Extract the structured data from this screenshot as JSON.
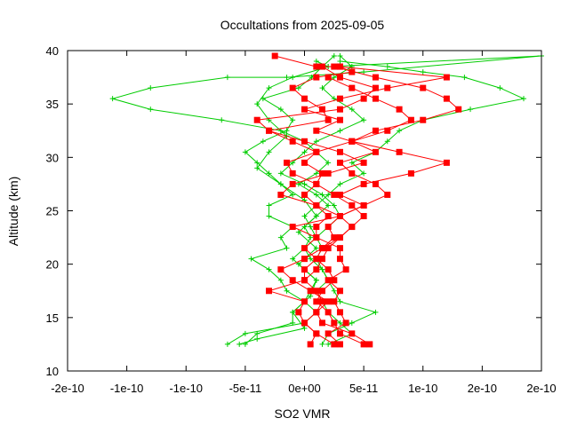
{
  "chart_data": {
    "type": "line",
    "title": "Occultations from 2025-09-05",
    "xlabel": "SO2 VMR",
    "ylabel": "Altitude (km)",
    "xlim": [
      -2e-10,
      2e-10
    ],
    "ylim": [
      10,
      40
    ],
    "x_ticks": [
      {
        "value": -2e-10,
        "label": "-2e-10"
      },
      {
        "value": -1.5e-10,
        "label": "-1e-10"
      },
      {
        "value": -1e-10,
        "label": "-1e-10"
      },
      {
        "value": -5e-11,
        "label": "-5e-11"
      },
      {
        "value": 0,
        "label": "0e+00"
      },
      {
        "value": 5e-11,
        "label": "5e-11"
      },
      {
        "value": 1e-10,
        "label": "1e-10"
      },
      {
        "value": 1.5e-10,
        "label": "2e-10"
      },
      {
        "value": 2e-10,
        "label": "2e-10"
      }
    ],
    "y_ticks": [
      10,
      15,
      20,
      25,
      30,
      35,
      40
    ],
    "grid": false,
    "series": [
      {
        "color": "#ff0000",
        "marker": "square",
        "points": [
          [
            -2.5e-11,
            39.5
          ],
          [
            1e-11,
            38.5
          ],
          [
            3e-11,
            38.5
          ],
          [
            4e-11,
            38
          ],
          [
            1e-11,
            37.5
          ],
          [
            -1e-11,
            36.5
          ],
          [
            0,
            35.5
          ],
          [
            1.5e-11,
            34.5
          ],
          [
            2e-11,
            33.5
          ],
          [
            -3e-11,
            32.5
          ],
          [
            -1e-11,
            31.5
          ],
          [
            1e-11,
            30.5
          ],
          [
            0,
            29.5
          ],
          [
            1.5e-11,
            28.5
          ],
          [
            1e-11,
            27.5
          ],
          [
            0,
            26.5
          ],
          [
            1e-11,
            25.5
          ],
          [
            2e-11,
            24.5
          ],
          [
            1e-11,
            23.5
          ],
          [
            1e-11,
            22.5
          ],
          [
            0,
            21.5
          ],
          [
            1e-11,
            20.5
          ],
          [
            0,
            19.5
          ],
          [
            0,
            18.5
          ],
          [
            1e-11,
            17.5
          ],
          [
            1.5e-11,
            16.5
          ],
          [
            1e-11,
            15.5
          ],
          [
            0,
            14.5
          ],
          [
            1e-11,
            13.5
          ],
          [
            5e-12,
            12.5
          ]
        ]
      },
      {
        "color": "#ff0000",
        "marker": "square",
        "points": [
          [
            2.5e-11,
            38.5
          ],
          [
            6e-11,
            37.5
          ],
          [
            1e-10,
            36.5
          ],
          [
            1.2e-10,
            35.5
          ],
          [
            1.3e-10,
            34.5
          ],
          [
            1e-10,
            33.5
          ],
          [
            6e-11,
            32.5
          ],
          [
            4e-11,
            31.5
          ],
          [
            8e-11,
            30.5
          ],
          [
            1.2e-10,
            29.5
          ],
          [
            9e-11,
            28.5
          ],
          [
            5e-11,
            27.5
          ],
          [
            3e-11,
            26.5
          ],
          [
            5e-11,
            25.5
          ],
          [
            3e-11,
            24.5
          ],
          [
            2e-11,
            23.5
          ],
          [
            2.5e-11,
            22.5
          ],
          [
            1.5e-11,
            21.5
          ],
          [
            1e-11,
            20.5
          ],
          [
            2e-11,
            19.5
          ],
          [
            2.5e-11,
            18.5
          ],
          [
            1.5e-11,
            17.5
          ],
          [
            1e-11,
            16.5
          ],
          [
            2e-11,
            15.5
          ],
          [
            2.5e-11,
            14.5
          ],
          [
            3e-11,
            13.5
          ],
          [
            5e-11,
            12.5
          ]
        ]
      },
      {
        "color": "#ff0000",
        "marker": "square",
        "points": [
          [
            2e-11,
            37.5
          ],
          [
            4e-11,
            36.5
          ],
          [
            6e-11,
            35.5
          ],
          [
            8e-11,
            34.5
          ],
          [
            9e-11,
            33.5
          ],
          [
            7e-11,
            32.5
          ],
          [
            4e-11,
            31.5
          ],
          [
            1e-11,
            30.5
          ],
          [
            -1.5e-11,
            29.5
          ],
          [
            -1e-11,
            28.5
          ],
          [
            1e-11,
            27.5
          ],
          [
            2.5e-11,
            26.5
          ],
          [
            4e-11,
            25.5
          ],
          [
            5e-11,
            24.5
          ],
          [
            4e-11,
            23.5
          ],
          [
            3e-11,
            22.5
          ],
          [
            2e-11,
            21.5
          ],
          [
            1.5e-11,
            20.5
          ],
          [
            1e-11,
            19.5
          ],
          [
            0,
            18.5
          ],
          [
            -3e-11,
            17.5
          ],
          [
            0,
            16.5
          ],
          [
            -5e-12,
            15.5
          ],
          [
            0,
            14.5
          ],
          [
            1e-11,
            13.5
          ],
          [
            2.5e-11,
            12.5
          ]
        ]
      },
      {
        "color": "#ff0000",
        "marker": "square",
        "points": [
          [
            3e-11,
            38.5
          ],
          [
            1.2e-10,
            37.5
          ],
          [
            7e-11,
            36.5
          ],
          [
            3e-11,
            35.5
          ],
          [
            0,
            34.5
          ],
          [
            3e-11,
            33.5
          ],
          [
            1e-11,
            32.5
          ],
          [
            4e-11,
            31.5
          ],
          [
            6e-11,
            30.5
          ],
          [
            3e-11,
            29.5
          ],
          [
            4e-11,
            28.5
          ],
          [
            6e-11,
            27.5
          ],
          [
            7e-11,
            26.5
          ],
          [
            5e-11,
            25.5
          ],
          [
            3e-11,
            24.5
          ],
          [
            4e-11,
            23.5
          ],
          [
            3e-11,
            22.5
          ],
          [
            1.5e-11,
            21.5
          ],
          [
            0,
            20.5
          ],
          [
            -2e-11,
            19.5
          ],
          [
            -1e-11,
            18.5
          ],
          [
            5e-12,
            17.5
          ],
          [
            2e-11,
            16.5
          ],
          [
            1e-11,
            15.5
          ],
          [
            1.5e-11,
            14.5
          ],
          [
            4e-11,
            13.5
          ],
          [
            5.5e-11,
            12.5
          ]
        ]
      },
      {
        "color": "#ff0000",
        "marker": "square",
        "points": [
          [
            1.5e-11,
            38.5
          ],
          [
            3e-11,
            37.5
          ],
          [
            6e-11,
            36.5
          ],
          [
            5e-11,
            35.5
          ],
          [
            3e-11,
            34.5
          ],
          [
            -4e-11,
            33.5
          ],
          [
            -3e-11,
            32.5
          ],
          [
            0,
            31.5
          ],
          [
            3e-11,
            30.5
          ],
          [
            5e-11,
            29.5
          ],
          [
            2e-11,
            28.5
          ],
          [
            -1e-11,
            27.5
          ],
          [
            -2e-11,
            26.5
          ],
          [
            1e-11,
            25.5
          ],
          [
            3e-11,
            24.5
          ],
          [
            -1e-11,
            23.5
          ],
          [
            1e-11,
            22.5
          ],
          [
            3e-11,
            21.5
          ],
          [
            3e-11,
            20.5
          ],
          [
            3.5e-11,
            19.5
          ],
          [
            2e-11,
            18.5
          ],
          [
            3e-11,
            17.5
          ],
          [
            2.5e-11,
            16.5
          ],
          [
            3e-11,
            15.5
          ],
          [
            3.5e-11,
            14.5
          ],
          [
            2e-11,
            13.5
          ],
          [
            3e-11,
            12.5
          ]
        ]
      },
      {
        "color": "#00cc00",
        "marker": "plus",
        "points": [
          [
            2.5e-11,
            39.5
          ],
          [
            1.5e-11,
            38.5
          ],
          [
            6e-12,
            37.5
          ],
          [
            -5e-12,
            36.5
          ],
          [
            -3.5e-11,
            35.5
          ],
          [
            -2e-11,
            34.5
          ],
          [
            -1e-11,
            33.5
          ],
          [
            -1.5e-11,
            32.5
          ],
          [
            -3.5e-11,
            31.5
          ],
          [
            -5e-11,
            30.5
          ],
          [
            -4e-11,
            29.5
          ],
          [
            -3e-11,
            28.5
          ],
          [
            -2e-11,
            27.5
          ],
          [
            -1e-11,
            26.5
          ],
          [
            -3e-11,
            25.5
          ],
          [
            -3e-11,
            24.5
          ],
          [
            -1e-11,
            23.5
          ],
          [
            -2e-11,
            22.5
          ],
          [
            -1.5e-11,
            21.5
          ],
          [
            -4.5e-11,
            20.5
          ],
          [
            -3e-11,
            19.5
          ],
          [
            -2e-11,
            18.5
          ],
          [
            -1.5e-11,
            17.5
          ],
          [
            0,
            16.5
          ],
          [
            1e-11,
            15.5
          ],
          [
            0,
            14.5
          ],
          [
            -5e-11,
            13.5
          ],
          [
            -6.5e-11,
            12.5
          ]
        ]
      },
      {
        "color": "#00cc00",
        "marker": "plus",
        "points": [
          [
            3e-11,
            39
          ],
          [
            7e-11,
            38.5
          ],
          [
            1e-10,
            38
          ],
          [
            1.35e-10,
            37.5
          ],
          [
            1.65e-10,
            36.5
          ],
          [
            1.85e-10,
            35.5
          ],
          [
            1.4e-10,
            34.5
          ],
          [
            1e-10,
            33.5
          ],
          [
            8e-11,
            32.5
          ],
          [
            7e-11,
            31.5
          ],
          [
            6e-11,
            30.5
          ],
          [
            4e-11,
            29.5
          ],
          [
            5e-11,
            28.5
          ],
          [
            3e-11,
            27.5
          ],
          [
            2e-11,
            26.5
          ],
          [
            1e-11,
            25.5
          ],
          [
            0,
            24.5
          ],
          [
            5e-12,
            23.5
          ],
          [
            1e-11,
            22.5
          ],
          [
            1.5e-11,
            21.5
          ],
          [
            1e-11,
            20.5
          ],
          [
            1.5e-11,
            19.5
          ],
          [
            2e-11,
            18.5
          ],
          [
            2.5e-11,
            17.5
          ],
          [
            3e-11,
            16.5
          ],
          [
            6e-11,
            15.5
          ],
          [
            4e-11,
            14.5
          ],
          [
            2e-11,
            13.5
          ],
          [
            1.5e-11,
            12.5
          ]
        ]
      },
      {
        "color": "#00cc00",
        "marker": "plus",
        "points": [
          [
            1e-11,
            39
          ],
          [
            2e-11,
            38.5
          ],
          [
            2e-10,
            39.5
          ],
          [
            5e-11,
            38
          ],
          [
            -1.5e-11,
            37.5
          ],
          [
            -6.5e-11,
            37.5
          ],
          [
            -1.3e-10,
            36.5
          ],
          [
            -1.62e-10,
            35.5
          ],
          [
            -1.3e-10,
            34.5
          ],
          [
            -7e-11,
            33.5
          ],
          [
            -2e-11,
            32.5
          ],
          [
            0,
            31.5
          ],
          [
            1e-11,
            30.5
          ],
          [
            2e-11,
            29.5
          ],
          [
            1e-11,
            28.5
          ],
          [
            -5e-12,
            27.5
          ],
          [
            1e-11,
            26.5
          ],
          [
            2e-11,
            25.5
          ],
          [
            1e-11,
            24.5
          ],
          [
            0,
            23.5
          ],
          [
            5e-12,
            22.5
          ],
          [
            0,
            21.5
          ],
          [
            -1e-11,
            20.5
          ],
          [
            0,
            19.5
          ],
          [
            1e-11,
            18.5
          ],
          [
            5e-12,
            17.5
          ],
          [
            0,
            16.5
          ],
          [
            -1e-11,
            15.5
          ],
          [
            -1e-11,
            14.5
          ],
          [
            -4e-11,
            13.5
          ],
          [
            -5e-11,
            12.5
          ]
        ]
      },
      {
        "color": "#00cc00",
        "marker": "plus",
        "points": [
          [
            3e-11,
            39.5
          ],
          [
            4e-11,
            38.5
          ],
          [
            2.5e-11,
            37.5
          ],
          [
            1.5e-11,
            36.5
          ],
          [
            2.5e-11,
            35.5
          ],
          [
            4e-11,
            34.5
          ],
          [
            5e-11,
            33.5
          ],
          [
            3e-11,
            32.5
          ],
          [
            1e-11,
            31.5
          ],
          [
            0,
            30.5
          ],
          [
            -1e-11,
            29.5
          ],
          [
            -2e-11,
            28.5
          ],
          [
            0,
            27.5
          ],
          [
            1.5e-11,
            26.5
          ],
          [
            2.5e-11,
            25.5
          ],
          [
            3e-11,
            24.5
          ],
          [
            2e-11,
            23.5
          ],
          [
            1e-11,
            22.5
          ],
          [
            0,
            21.5
          ],
          [
            5e-12,
            20.5
          ],
          [
            1.5e-11,
            19.5
          ],
          [
            2e-11,
            18.5
          ],
          [
            1e-11,
            17.5
          ],
          [
            1.5e-11,
            16.5
          ],
          [
            2e-11,
            15.5
          ],
          [
            3e-11,
            14.5
          ],
          [
            4e-11,
            13.5
          ],
          [
            2e-11,
            12.5
          ]
        ]
      },
      {
        "color": "#00cc00",
        "marker": "plus",
        "points": [
          [
            2e-11,
            38.5
          ],
          [
            -1e-11,
            37.5
          ],
          [
            -3e-11,
            36.5
          ],
          [
            -4e-11,
            35
          ],
          [
            -3e-11,
            33.5
          ],
          [
            -1.5e-11,
            32
          ],
          [
            -3e-11,
            30.5
          ],
          [
            -4e-11,
            29
          ],
          [
            -2e-11,
            27.5
          ],
          [
            0,
            26
          ],
          [
            1e-11,
            24.5
          ],
          [
            -5e-12,
            23
          ],
          [
            1e-11,
            21.5
          ],
          [
            -5e-12,
            20
          ],
          [
            1e-11,
            18.5
          ],
          [
            5e-12,
            17
          ],
          [
            -1e-11,
            15.5
          ],
          [
            0,
            14
          ],
          [
            -4e-11,
            13
          ],
          [
            -5.5e-11,
            12.5
          ]
        ]
      }
    ]
  }
}
